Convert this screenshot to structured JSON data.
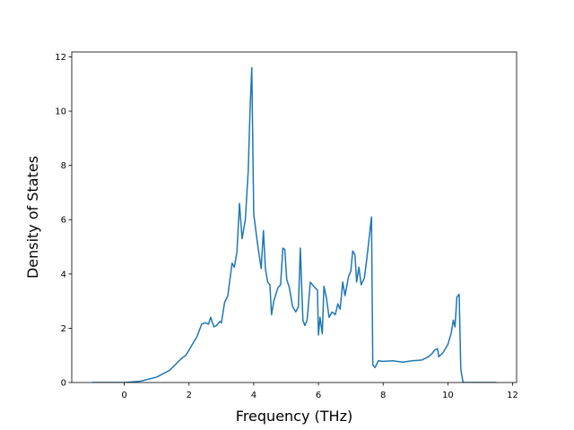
{
  "chart_data": {
    "type": "line",
    "x_label": "Frequency (THz)",
    "y_label": "Density of States",
    "x": [
      -1,
      0,
      0.5,
      1,
      1.4,
      1.78,
      1.9,
      2.05,
      2.25,
      2.39,
      2.5,
      2.6,
      2.67,
      2.77,
      2.85,
      2.95,
      3.0,
      3.1,
      3.2,
      3.33,
      3.4,
      3.48,
      3.56,
      3.64,
      3.74,
      3.83,
      3.89,
      3.94,
      4.0,
      4.13,
      4.23,
      4.3,
      4.36,
      4.43,
      4.5,
      4.55,
      4.62,
      4.75,
      4.83,
      4.9,
      4.96,
      5.02,
      5.1,
      5.2,
      5.3,
      5.38,
      5.44,
      5.52,
      5.58,
      5.65,
      5.75,
      5.85,
      5.97,
      6.0,
      6.05,
      6.12,
      6.17,
      6.25,
      6.33,
      6.42,
      6.52,
      6.6,
      6.67,
      6.75,
      6.82,
      6.93,
      7.0,
      7.06,
      7.13,
      7.18,
      7.25,
      7.32,
      7.42,
      7.5,
      7.64,
      7.68,
      7.75,
      7.85,
      8.0,
      8.3,
      8.6,
      8.9,
      9.2,
      9.4,
      9.5,
      9.6,
      9.68,
      9.72,
      9.85,
      10.0,
      10.1,
      10.17,
      10.22,
      10.28,
      10.35,
      10.4,
      10.47,
      11.5
    ],
    "series": [
      {
        "name": "DOS",
        "color": "#1f77b4",
        "values": [
          0,
          0,
          0.05,
          0.2,
          0.45,
          0.9,
          1.0,
          1.3,
          1.7,
          2.15,
          2.2,
          2.15,
          2.4,
          2.05,
          2.1,
          2.25,
          2.2,
          2.95,
          3.2,
          4.4,
          4.25,
          4.8,
          6.6,
          5.3,
          6.0,
          7.8,
          10.2,
          11.6,
          6.2,
          5.0,
          4.2,
          5.6,
          4.2,
          3.7,
          3.6,
          2.5,
          3.0,
          3.5,
          3.6,
          4.95,
          4.9,
          3.8,
          3.5,
          2.8,
          2.6,
          2.8,
          4.95,
          2.3,
          2.1,
          2.3,
          3.7,
          3.55,
          3.4,
          1.75,
          2.4,
          1.8,
          3.55,
          3.1,
          2.4,
          2.6,
          2.5,
          2.9,
          2.7,
          3.7,
          3.2,
          3.9,
          4.1,
          4.85,
          4.7,
          3.7,
          4.25,
          3.6,
          3.85,
          4.6,
          6.1,
          0.65,
          0.55,
          0.8,
          0.78,
          0.8,
          0.75,
          0.8,
          0.83,
          0.95,
          1.05,
          1.2,
          1.25,
          0.95,
          1.1,
          1.4,
          1.8,
          2.3,
          2.05,
          3.15,
          3.25,
          0.5,
          0,
          0
        ]
      }
    ],
    "xlim": [
      -1.625,
      12.125
    ],
    "xticks": [
      0,
      2,
      4,
      6,
      8,
      10,
      12
    ],
    "ylim": [
      0,
      12.18
    ],
    "yticks": [
      0,
      2,
      4,
      6,
      8,
      10,
      12
    ]
  }
}
